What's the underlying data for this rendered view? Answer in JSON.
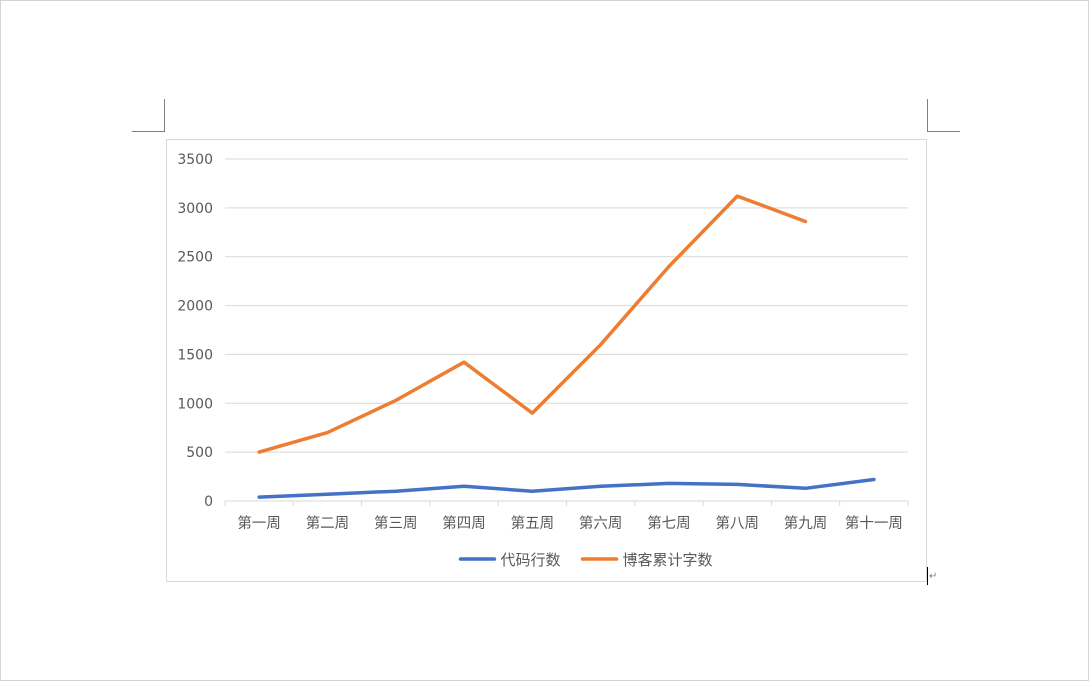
{
  "document": {
    "paragraph_mark": "↵"
  },
  "colors": {
    "page_border": "#d4d4d4",
    "chart_border": "#d9d9d9",
    "gridline": "#d9d9d9",
    "axis_text": "#595959",
    "series_1": "#4472c4",
    "series_2": "#ed7d31"
  },
  "chart_data": {
    "type": "line",
    "categories": [
      "第一周",
      "第二周",
      "第三周",
      "第四周",
      "第五周",
      "第六周",
      "第七周",
      "第八周",
      "第九周",
      "第十一周"
    ],
    "series": [
      {
        "name": "代码行数",
        "color": "#4472c4",
        "values": [
          40,
          70,
          100,
          150,
          100,
          150,
          180,
          170,
          130,
          220
        ]
      },
      {
        "name": "博客累计字数",
        "color": "#ed7d31",
        "values": [
          500,
          700,
          1030,
          1420,
          900,
          1600,
          2400,
          3120,
          2860,
          null
        ]
      }
    ],
    "y_ticks": [
      0,
      500,
      1000,
      1500,
      2000,
      2500,
      3000,
      3500
    ],
    "ylim": [
      0,
      3500
    ],
    "grid": true,
    "legend": "bottom"
  }
}
